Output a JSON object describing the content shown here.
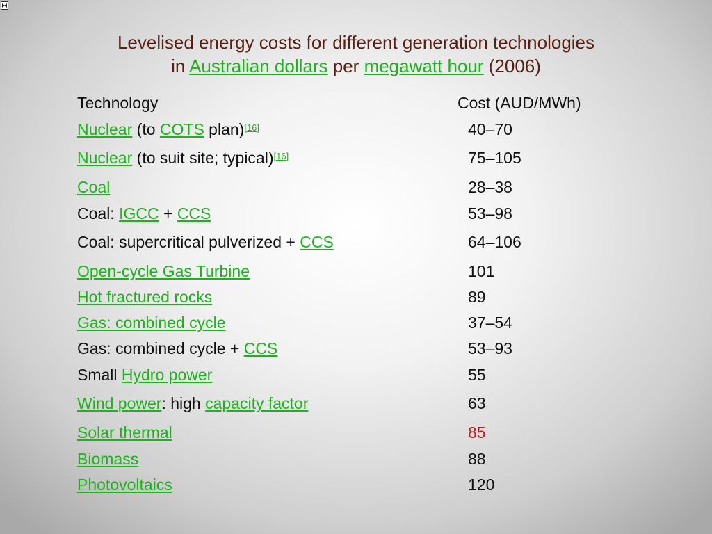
{
  "title": {
    "line1": "Levelised energy costs for different generation technologies",
    "line2_prefix": "in ",
    "line2_link1": "Australian dollars",
    "line2_mid": " per ",
    "line2_link2": "megawatt hour",
    "line2_suffix": " (2006)"
  },
  "table": {
    "headers": {
      "technology": "Technology",
      "cost": "Cost (AUD/MWh)"
    },
    "rows": [
      {
        "parts": [
          {
            "text": "Nuclear",
            "link": true
          },
          {
            "text": " (to "
          },
          {
            "text": "COTS",
            "link": true
          },
          {
            "text": " plan)"
          },
          {
            "text": "[16]",
            "link": true,
            "sup": true
          }
        ],
        "cost": "40–70"
      },
      {
        "parts": [
          {
            "text": "Nuclear",
            "link": true
          },
          {
            "text": " (to suit site; typical)"
          },
          {
            "text": "[16]",
            "link": true,
            "sup": true
          }
        ],
        "cost": "75–105"
      },
      {
        "parts": [
          {
            "text": "Coal",
            "link": true
          }
        ],
        "cost": "28–38"
      },
      {
        "parts": [
          {
            "text": "Coal: "
          },
          {
            "text": "IGCC",
            "link": true
          },
          {
            "text": " + "
          },
          {
            "text": "CCS",
            "link": true
          }
        ],
        "cost": "53–98"
      },
      {
        "parts": [
          {
            "text": "Coal: supercritical pulverized + "
          },
          {
            "text": "CCS",
            "link": true
          }
        ],
        "cost": "64–106"
      },
      {
        "parts": [
          {
            "text": "Open-cycle Gas Turbine",
            "link": true
          }
        ],
        "cost": "101"
      },
      {
        "parts": [
          {
            "text": "Hot fractured rocks",
            "link": true
          }
        ],
        "cost": "89"
      },
      {
        "parts": [
          {
            "text": "Gas: combined cycle",
            "link": true
          }
        ],
        "cost": "37–54"
      },
      {
        "parts": [
          {
            "text": "Gas: combined cycle + "
          },
          {
            "text": "CCS",
            "link": true
          }
        ],
        "cost": "53–93"
      },
      {
        "parts": [
          {
            "text": "Small "
          },
          {
            "text": "Hydro power",
            "link": true
          }
        ],
        "cost": "55"
      },
      {
        "parts": [
          {
            "text": "Wind power",
            "link": true
          },
          {
            "text": ": high "
          },
          {
            "text": "capacity factor",
            "link": true
          }
        ],
        "cost": "63"
      },
      {
        "parts": [
          {
            "text": "Solar thermal",
            "link": true
          }
        ],
        "cost": "85",
        "cost_highlight": true
      },
      {
        "parts": [
          {
            "text": "Biomass",
            "link": true
          }
        ],
        "cost": "88"
      },
      {
        "parts": [
          {
            "text": "Photovoltaics",
            "link": true
          }
        ],
        "cost": "120"
      }
    ]
  },
  "colors": {
    "title": "#5a1e12",
    "link": "#1cb31c",
    "highlight": "#c11a1a",
    "text": "#111111"
  },
  "icons": {
    "corner": "broken-image-icon"
  }
}
